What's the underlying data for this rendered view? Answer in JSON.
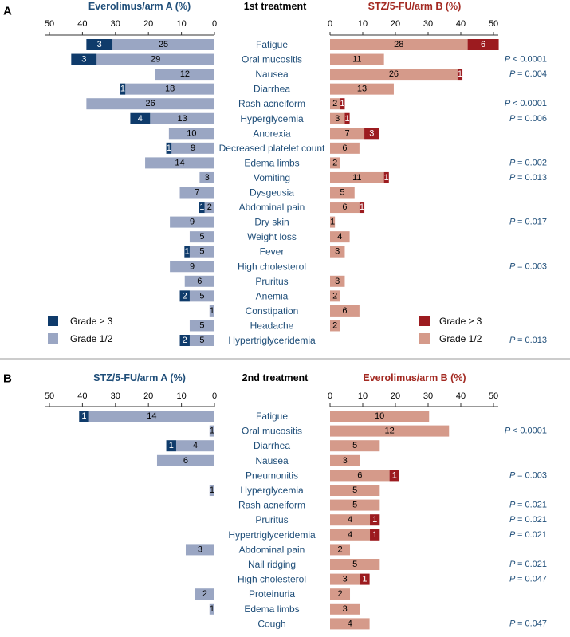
{
  "colors": {
    "left_high": "#0f3b6b",
    "left_low": "#9aa6c3",
    "right_high": "#9c1b1f",
    "right_low": "#d59a8a",
    "left_title": "#1f4e79",
    "right_title": "#a32a22",
    "label": "#1f4e79",
    "pval": "#1f4e79",
    "axis": "#333333",
    "divider": "#999999"
  },
  "chart_data": [
    {
      "type": "bar",
      "panel_label": "A",
      "center_title": "1st treatment",
      "left_title": "Everolimus/arm A (%)",
      "right_title": "STZ/5-FU/arm B (%)",
      "left_ticks": [
        50,
        40,
        30,
        20,
        10,
        0
      ],
      "right_ticks": [
        0,
        10,
        20,
        30,
        40,
        50
      ],
      "xlim": [
        0,
        50
      ],
      "legend_left": {
        "high": "Grade ≥ 3",
        "low": "Grade 1/2"
      },
      "legend_right": {
        "high": "Grade ≥ 3",
        "low": "Grade 1/2"
      },
      "rows": [
        {
          "label": "Fatigue",
          "left_high": 3,
          "left_low": 25,
          "left_high_pct": 7.9,
          "left_low_pct": 30.9,
          "right_high": 6,
          "right_low": 28,
          "right_high_pct": 9.5,
          "right_low_pct": 42.1,
          "pval": ""
        },
        {
          "label": "Oral mucositis",
          "left_high": 3,
          "left_low": 29,
          "left_high_pct": 7.7,
          "left_low_pct": 35.7,
          "right_high": null,
          "right_low": 11,
          "right_high_pct": 0,
          "right_low_pct": 16.5,
          "pval": "< 0.0001"
        },
        {
          "label": "Nausea",
          "left_high": null,
          "left_low": 12,
          "left_high_pct": 0,
          "left_low_pct": 17.9,
          "right_high": 1,
          "right_low": 26,
          "right_high_pct": 1.5,
          "right_low_pct": 39.0,
          "pval": "= 0.004"
        },
        {
          "label": "Diarrhea",
          "left_high": 1,
          "left_low": 18,
          "left_high_pct": 1.6,
          "left_low_pct": 27.0,
          "right_high": null,
          "right_low": 13,
          "right_high_pct": 0,
          "right_low_pct": 19.5,
          "pval": ""
        },
        {
          "label": "Rash acneiform",
          "left_high": null,
          "left_low": 26,
          "left_high_pct": 0,
          "left_low_pct": 38.8,
          "right_high": 1,
          "right_low": 2,
          "right_high_pct": 1.5,
          "right_low_pct": 3.0,
          "pval": "< 0.0001"
        },
        {
          "label": "Hyperglycemia",
          "left_high": 4,
          "left_low": 13,
          "left_high_pct": 6.0,
          "left_low_pct": 19.5,
          "right_high": 1,
          "right_low": 3,
          "right_high_pct": 1.5,
          "right_low_pct": 4.5,
          "pval": "= 0.006"
        },
        {
          "label": "Anorexia",
          "left_high": null,
          "left_low": 10,
          "left_high_pct": 0,
          "left_low_pct": 13.8,
          "right_high": 3,
          "right_low": 7,
          "right_high_pct": 4.5,
          "right_low_pct": 10.5,
          "pval": ""
        },
        {
          "label": "Decreased platelet count",
          "left_high": 1,
          "left_low": 9,
          "left_high_pct": 1.6,
          "left_low_pct": 13.0,
          "right_high": null,
          "right_low": 6,
          "right_high_pct": 0,
          "right_low_pct": 9.0,
          "pval": ""
        },
        {
          "label": "Edema limbs",
          "left_high": null,
          "left_low": 14,
          "left_high_pct": 0,
          "left_low_pct": 21.0,
          "right_high": null,
          "right_low": 2,
          "right_high_pct": 0,
          "right_low_pct": 3.0,
          "pval": "= 0.002"
        },
        {
          "label": "Vomiting",
          "left_high": null,
          "left_low": 3,
          "left_high_pct": 0,
          "left_low_pct": 4.5,
          "right_high": 1,
          "right_low": 11,
          "right_high_pct": 1.5,
          "right_low_pct": 16.5,
          "pval": "= 0.013"
        },
        {
          "label": "Dysgeusia",
          "left_high": null,
          "left_low": 7,
          "left_high_pct": 0,
          "left_low_pct": 10.5,
          "right_high": null,
          "right_low": 5,
          "right_high_pct": 0,
          "right_low_pct": 7.5,
          "pval": ""
        },
        {
          "label": "Abdominal pain",
          "left_high": 1,
          "left_low": 2,
          "left_high_pct": 1.6,
          "left_low_pct": 3.0,
          "right_high": 1,
          "right_low": 6,
          "right_high_pct": 1.5,
          "right_low_pct": 9.0,
          "pval": ""
        },
        {
          "label": "Dry skin",
          "left_high": null,
          "left_low": 9,
          "left_high_pct": 0,
          "left_low_pct": 13.5,
          "right_high": null,
          "right_low": 1,
          "right_high_pct": 0,
          "right_low_pct": 1.5,
          "pval": "= 0.017"
        },
        {
          "label": "Weight loss",
          "left_high": null,
          "left_low": 5,
          "left_high_pct": 0,
          "left_low_pct": 7.5,
          "right_high": null,
          "right_low": 4,
          "right_high_pct": 0,
          "right_low_pct": 6.0,
          "pval": ""
        },
        {
          "label": "Fever",
          "left_high": 1,
          "left_low": 5,
          "left_high_pct": 1.6,
          "left_low_pct": 7.5,
          "right_high": null,
          "right_low": 3,
          "right_high_pct": 0,
          "right_low_pct": 4.5,
          "pval": ""
        },
        {
          "label": "High cholesterol",
          "left_high": null,
          "left_low": 9,
          "left_high_pct": 0,
          "left_low_pct": 13.5,
          "right_high": null,
          "right_low": null,
          "right_high_pct": 0,
          "right_low_pct": 0,
          "pval": "= 0.003"
        },
        {
          "label": "Pruritus",
          "left_high": null,
          "left_low": 6,
          "left_high_pct": 0,
          "left_low_pct": 9.0,
          "right_high": null,
          "right_low": 3,
          "right_high_pct": 0,
          "right_low_pct": 4.5,
          "pval": ""
        },
        {
          "label": "Anemia",
          "left_high": 2,
          "left_low": 5,
          "left_high_pct": 3.0,
          "left_low_pct": 7.5,
          "right_high": null,
          "right_low": 2,
          "right_high_pct": 0,
          "right_low_pct": 3.0,
          "pval": ""
        },
        {
          "label": "Constipation",
          "left_high": null,
          "left_low": 1,
          "left_high_pct": 0,
          "left_low_pct": 1.5,
          "right_high": null,
          "right_low": 6,
          "right_high_pct": 0,
          "right_low_pct": 9.0,
          "pval": ""
        },
        {
          "label": "Headache",
          "left_high": null,
          "left_low": 5,
          "left_high_pct": 0,
          "left_low_pct": 7.5,
          "right_high": null,
          "right_low": 2,
          "right_high_pct": 0,
          "right_low_pct": 3.0,
          "pval": ""
        },
        {
          "label": "Hypertriglyceridemia",
          "left_high": 2,
          "left_low": 5,
          "left_high_pct": 3.0,
          "left_low_pct": 7.5,
          "right_high": null,
          "right_low": null,
          "right_high_pct": 0,
          "right_low_pct": 0,
          "pval": "= 0.013"
        }
      ]
    },
    {
      "type": "bar",
      "panel_label": "B",
      "center_title": "2nd treatment",
      "left_title": "STZ/5-FU/arm A (%)",
      "right_title": "Everolimus/arm B (%)",
      "left_ticks": [
        50,
        40,
        30,
        20,
        10,
        0
      ],
      "right_ticks": [
        0,
        10,
        20,
        30,
        40,
        50
      ],
      "xlim": [
        0,
        50
      ],
      "rows": [
        {
          "label": "Fatigue",
          "left_high": 1,
          "left_low": 14,
          "left_high_pct": 3.0,
          "left_low_pct": 38.0,
          "right_high": null,
          "right_low": 10,
          "right_high_pct": 0,
          "right_low_pct": 30.3,
          "pval": ""
        },
        {
          "label": "Oral mucositis",
          "left_high": null,
          "left_low": 1,
          "left_high_pct": 0,
          "left_low_pct": 1.5,
          "right_high": null,
          "right_low": 12,
          "right_high_pct": 0,
          "right_low_pct": 36.4,
          "pval": "< 0.0001"
        },
        {
          "label": "Diarrhea",
          "left_high": 1,
          "left_low": 4,
          "left_high_pct": 3.0,
          "left_low_pct": 11.6,
          "right_high": null,
          "right_low": 5,
          "right_high_pct": 0,
          "right_low_pct": 15.2,
          "pval": ""
        },
        {
          "label": "Nausea",
          "left_high": null,
          "left_low": 6,
          "left_high_pct": 0,
          "left_low_pct": 17.4,
          "right_high": null,
          "right_low": 3,
          "right_high_pct": 0,
          "right_low_pct": 9.1,
          "pval": ""
        },
        {
          "label": "Pneumonitis",
          "left_high": null,
          "left_low": null,
          "left_high_pct": 0,
          "left_low_pct": 0,
          "right_high": 1,
          "right_low": 6,
          "right_high_pct": 3.0,
          "right_low_pct": 18.2,
          "pval": "= 0.003"
        },
        {
          "label": "Hyperglycemia",
          "left_high": null,
          "left_low": 1,
          "left_high_pct": 0,
          "left_low_pct": 1.5,
          "right_high": null,
          "right_low": 5,
          "right_high_pct": 0,
          "right_low_pct": 15.2,
          "pval": ""
        },
        {
          "label": "Rash acneiform",
          "left_high": null,
          "left_low": null,
          "left_high_pct": 0,
          "left_low_pct": 0,
          "right_high": null,
          "right_low": 5,
          "right_high_pct": 0,
          "right_low_pct": 15.2,
          "pval": "= 0.021"
        },
        {
          "label": "Pruritus",
          "left_high": null,
          "left_low": null,
          "left_high_pct": 0,
          "left_low_pct": 0,
          "right_high": 1,
          "right_low": 4,
          "right_high_pct": 3.0,
          "right_low_pct": 12.2,
          "pval": "= 0.021"
        },
        {
          "label": "Hypertriglyceridemia",
          "left_high": null,
          "left_low": null,
          "left_high_pct": 0,
          "left_low_pct": 0,
          "right_high": 1,
          "right_low": 4,
          "right_high_pct": 3.0,
          "right_low_pct": 12.2,
          "pval": "= 0.021"
        },
        {
          "label": "Abdominal pain",
          "left_high": null,
          "left_low": 3,
          "left_high_pct": 0,
          "left_low_pct": 8.7,
          "right_high": null,
          "right_low": 2,
          "right_high_pct": 0,
          "right_low_pct": 6.1,
          "pval": ""
        },
        {
          "label": "Nail ridging",
          "left_high": null,
          "left_low": null,
          "left_high_pct": 0,
          "left_low_pct": 0,
          "right_high": null,
          "right_low": 5,
          "right_high_pct": 0,
          "right_low_pct": 15.2,
          "pval": "= 0.021"
        },
        {
          "label": "High cholesterol",
          "left_high": null,
          "left_low": null,
          "left_high_pct": 0,
          "left_low_pct": 0,
          "right_high": 1,
          "right_low": 3,
          "right_high_pct": 3.0,
          "right_low_pct": 9.1,
          "pval": "= 0.047"
        },
        {
          "label": "Proteinuria",
          "left_high": null,
          "left_low": 2,
          "left_high_pct": 0,
          "left_low_pct": 5.8,
          "right_high": null,
          "right_low": 2,
          "right_high_pct": 0,
          "right_low_pct": 6.1,
          "pval": ""
        },
        {
          "label": "Edema limbs",
          "left_high": null,
          "left_low": 1,
          "left_high_pct": 0,
          "left_low_pct": 1.5,
          "right_high": null,
          "right_low": 3,
          "right_high_pct": 0,
          "right_low_pct": 9.1,
          "pval": ""
        },
        {
          "label": "Cough",
          "left_high": null,
          "left_low": null,
          "left_high_pct": 0,
          "left_low_pct": 0,
          "right_high": null,
          "right_low": 4,
          "right_high_pct": 0,
          "right_low_pct": 12.1,
          "pval": "= 0.047"
        }
      ]
    }
  ]
}
